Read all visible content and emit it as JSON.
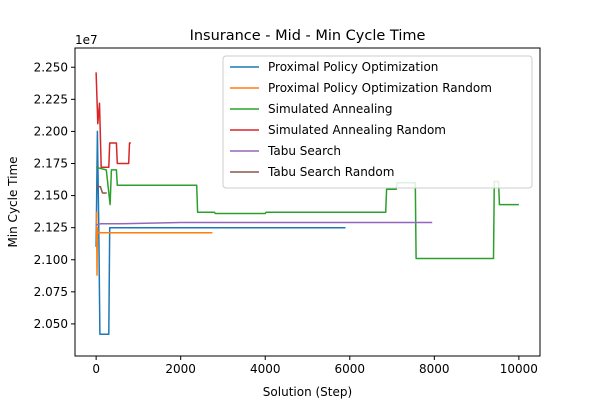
{
  "chart_data": {
    "type": "line",
    "title": "Insurance - Mid - Min Cycle Time",
    "xlabel": "Solution (Step)",
    "ylabel": "Min Cycle Time",
    "offset_text": "1e7",
    "xlim": [
      -500,
      10500
    ],
    "ylim": [
      20250000,
      22650000
    ],
    "x_ticks": [
      0,
      2000,
      4000,
      6000,
      8000,
      10000
    ],
    "x_tick_labels": [
      "0",
      "2000",
      "4000",
      "6000",
      "8000",
      "10000"
    ],
    "y_ticks": [
      20500000,
      20750000,
      21000000,
      21250000,
      21500000,
      21750000,
      22000000,
      22250000,
      22500000
    ],
    "y_tick_labels": [
      "2.050",
      "2.075",
      "2.100",
      "2.125",
      "2.150",
      "2.175",
      "2.200",
      "2.225",
      "2.250"
    ],
    "legend_position": "upper right",
    "series": [
      {
        "name": "Proximal Policy Optimization",
        "color": "#1f77b4",
        "x": [
          0,
          30,
          60,
          90,
          120,
          300,
          320,
          5900
        ],
        "y": [
          21100000,
          22000000,
          21300000,
          20420000,
          20420000,
          20420000,
          21250000,
          21250000
        ]
      },
      {
        "name": "Proximal Policy Optimization Random",
        "color": "#ff7f0e",
        "x": [
          0,
          10,
          20,
          30,
          40,
          60,
          2750
        ],
        "y": [
          21350000,
          21370000,
          20880000,
          21250000,
          21210000,
          21210000,
          21210000
        ]
      },
      {
        "name": "Simulated Annealing",
        "color": "#2ca02c",
        "x": [
          0,
          240,
          330,
          360,
          480,
          500,
          2380,
          2400,
          2800,
          2820,
          4000,
          4020,
          6850,
          6870,
          7100,
          7120,
          7550,
          7570,
          9400,
          9420,
          9520,
          9540,
          10000
        ],
        "y": [
          21720000,
          21700000,
          21430000,
          21700000,
          21700000,
          21580000,
          21580000,
          21370000,
          21370000,
          21360000,
          21360000,
          21370000,
          21370000,
          21550000,
          21550000,
          21600000,
          21600000,
          21010000,
          21010000,
          21610000,
          21610000,
          21430000,
          21430000
        ]
      },
      {
        "name": "Simulated Annealing Random",
        "color": "#d62728",
        "x": [
          0,
          40,
          80,
          120,
          160,
          300,
          320,
          480,
          500,
          770,
          790,
          820
        ],
        "y": [
          22460000,
          22060000,
          22220000,
          21720000,
          21720000,
          21720000,
          21910000,
          21910000,
          21750000,
          21750000,
          21910000,
          21910000
        ]
      },
      {
        "name": "Tabu Search",
        "color": "#9467bd",
        "x": [
          0,
          100,
          500,
          2000,
          5000,
          7950
        ],
        "y": [
          21270000,
          21280000,
          21280000,
          21290000,
          21290000,
          21290000
        ]
      },
      {
        "name": "Tabu Search Random",
        "color": "#8c564b",
        "x": [
          0,
          100,
          150,
          200,
          250
        ],
        "y": [
          21570000,
          21570000,
          21520000,
          21520000,
          21520000
        ]
      }
    ]
  }
}
